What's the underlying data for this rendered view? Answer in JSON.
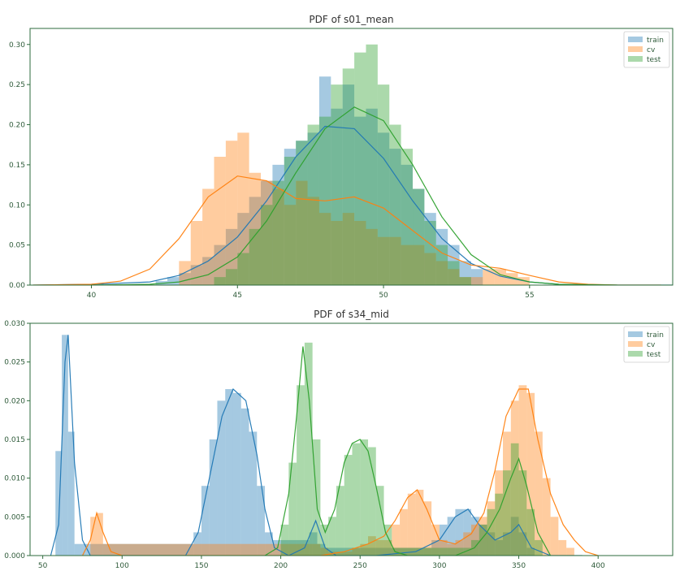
{
  "chart_data": [
    {
      "type": "histogram",
      "title": "PDF of s01_mean",
      "xlabel": "",
      "ylabel": "",
      "xlim": [
        37.9,
        59.9
      ],
      "ylim": [
        0,
        0.32
      ],
      "xticks": [
        40,
        45,
        50,
        55
      ],
      "yticks": [
        0.0,
        0.05,
        0.1,
        0.15,
        0.2,
        0.25,
        0.3
      ],
      "ytick_labels": [
        "0.00",
        "0.05",
        "0.10",
        "0.15",
        "0.20",
        "0.25",
        "0.30"
      ],
      "legend": {
        "position": "top-right",
        "entries": [
          "train",
          "cv",
          "test"
        ]
      },
      "series": [
        {
          "name": "train",
          "color": "#1f77b4",
          "bins": [
            42.2,
            42.6,
            43.0,
            43.4,
            43.8,
            44.2,
            44.6,
            45.0,
            45.4,
            45.8,
            46.2,
            46.6,
            47.0,
            47.4,
            47.8,
            48.2,
            48.6,
            49.0,
            49.4,
            49.8,
            50.2,
            50.6,
            51.0,
            51.4,
            51.8,
            52.2,
            52.6,
            53.0,
            53.4
          ],
          "heights": [
            0.005,
            0.01,
            0.015,
            0.025,
            0.035,
            0.05,
            0.07,
            0.09,
            0.11,
            0.13,
            0.15,
            0.17,
            0.18,
            0.19,
            0.26,
            0.22,
            0.25,
            0.21,
            0.22,
            0.19,
            0.17,
            0.15,
            0.12,
            0.09,
            0.07,
            0.05,
            0.03,
            0.02
          ],
          "kde": {
            "x": [
              38,
              40,
              42,
              43,
              44,
              45,
              46,
              47,
              48,
              49,
              50,
              51,
              52,
              53,
              54,
              55,
              56,
              58,
              60
            ],
            "y": [
              0,
              0.001,
              0.004,
              0.012,
              0.03,
              0.06,
              0.105,
              0.16,
              0.198,
              0.195,
              0.158,
              0.105,
              0.058,
              0.027,
              0.011,
              0.004,
              0.001,
              0,
              0
            ]
          }
        },
        {
          "name": "cv",
          "color": "#ff7f0e",
          "bins": [
            43.0,
            43.4,
            43.8,
            44.2,
            44.6,
            45.0,
            45.4,
            45.8,
            46.2,
            46.6,
            47.0,
            47.4,
            47.8,
            48.2,
            48.6,
            49.0,
            49.4,
            49.8,
            50.2,
            50.6,
            51.0,
            51.4,
            51.8,
            52.2,
            52.6,
            53.0,
            53.4,
            53.8,
            54.2,
            54.6,
            55.0
          ],
          "heights": [
            0.03,
            0.08,
            0.12,
            0.16,
            0.18,
            0.19,
            0.14,
            0.13,
            0.12,
            0.1,
            0.13,
            0.11,
            0.09,
            0.08,
            0.09,
            0.08,
            0.07,
            0.06,
            0.06,
            0.05,
            0.05,
            0.04,
            0.03,
            0.02,
            0.01,
            0.01,
            0.02,
            0.02,
            0.015,
            0.01
          ],
          "kde": {
            "x": [
              38,
              40,
              41,
              42,
              43,
              44,
              45,
              46,
              47,
              48,
              49,
              50,
              51,
              52,
              53,
              54,
              55,
              56,
              57,
              58,
              59.5
            ],
            "y": [
              0,
              0.001,
              0.005,
              0.02,
              0.058,
              0.11,
              0.136,
              0.13,
              0.108,
              0.105,
              0.11,
              0.096,
              0.068,
              0.04,
              0.025,
              0.021,
              0.012,
              0.004,
              0.001,
              0,
              0
            ]
          }
        },
        {
          "name": "test",
          "color": "#2ca02c",
          "bins": [
            44.2,
            44.6,
            45.0,
            45.4,
            45.8,
            46.2,
            46.6,
            47.0,
            47.4,
            47.8,
            48.2,
            48.6,
            49.0,
            49.4,
            49.8,
            50.2,
            50.6,
            51.0,
            51.4,
            51.8,
            52.2,
            52.6,
            53.0
          ],
          "heights": [
            0.01,
            0.02,
            0.04,
            0.07,
            0.1,
            0.13,
            0.16,
            0.18,
            0.2,
            0.21,
            0.25,
            0.27,
            0.29,
            0.3,
            0.25,
            0.2,
            0.17,
            0.12,
            0.08,
            0.05,
            0.03,
            0.01
          ],
          "kde": {
            "x": [
              40,
              42,
              43,
              44,
              45,
              46,
              47,
              48,
              49,
              50,
              51,
              52,
              53,
              54,
              55,
              56,
              58
            ],
            "y": [
              0,
              0.001,
              0.004,
              0.013,
              0.035,
              0.08,
              0.14,
              0.195,
              0.222,
              0.205,
              0.15,
              0.085,
              0.038,
              0.013,
              0.004,
              0.001,
              0
            ]
          }
        }
      ]
    },
    {
      "type": "histogram",
      "title": "PDF of s34_mid",
      "xlabel": "",
      "ylabel": "",
      "xlim": [
        42,
        447
      ],
      "ylim": [
        0,
        0.03
      ],
      "xticks": [
        50,
        100,
        150,
        200,
        250,
        300,
        350,
        400
      ],
      "yticks": [
        0.0,
        0.005,
        0.01,
        0.015,
        0.02,
        0.025,
        0.03
      ],
      "ytick_labels": [
        "0.000",
        "0.005",
        "0.010",
        "0.015",
        "0.020",
        "0.025",
        "0.030"
      ],
      "legend": {
        "position": "top-right",
        "entries": [
          "train",
          "cv",
          "test"
        ]
      },
      "series": [
        {
          "name": "train",
          "color": "#1f77b4",
          "bins": [
            58,
            62,
            66,
            70,
            145,
            150,
            155,
            160,
            165,
            170,
            175,
            180,
            185,
            190,
            195,
            218,
            223,
            228,
            295,
            300,
            305,
            310,
            315,
            320,
            325,
            330,
            335,
            340,
            345,
            350,
            355,
            360
          ],
          "heights": [
            0.0135,
            0.0285,
            0.016,
            0.0015,
            0.003,
            0.009,
            0.015,
            0.02,
            0.0215,
            0.021,
            0.019,
            0.016,
            0.009,
            0.003,
            0.002,
            0.003,
            0.0015,
            0.001,
            0.002,
            0.004,
            0.005,
            0.006,
            0.006,
            0.005,
            0.004,
            0.003,
            0.002,
            0.003,
            0.005,
            0.003,
            0.001
          ],
          "kde": {
            "x": [
              55,
              60,
              64,
              66,
              70,
              75,
              80,
              140,
              148,
              155,
              163,
              170,
              178,
              185,
              190,
              196,
              205,
              215,
              222,
              228,
              235,
              260,
              285,
              300,
              310,
              318,
              325,
              335,
              345,
              350,
              358,
              370,
              390
            ],
            "y": [
              0,
              0.004,
              0.025,
              0.0285,
              0.012,
              0.002,
              0,
              0,
              0.003,
              0.01,
              0.018,
              0.0215,
              0.02,
              0.013,
              0.006,
              0.001,
              0,
              0.001,
              0.0045,
              0.001,
              0,
              0,
              0.0005,
              0.002,
              0.005,
              0.006,
              0.004,
              0.002,
              0.003,
              0.004,
              0.001,
              0,
              0
            ]
          }
        },
        {
          "name": "cv",
          "color": "#ff7f0e",
          "bins": [
            80,
            84,
            88,
            225,
            230,
            235,
            240,
            245,
            250,
            255,
            260,
            265,
            270,
            275,
            280,
            285,
            290,
            295,
            300,
            305,
            310,
            315,
            320,
            325,
            330,
            335,
            340,
            345,
            350,
            355,
            360,
            365,
            370,
            375,
            380,
            385
          ],
          "heights": [
            0.005,
            0.0055,
            0.0015,
            0.001,
            0.0005,
            0.0005,
            0.0005,
            0.001,
            0.0015,
            0.0025,
            0.002,
            0.002,
            0.004,
            0.006,
            0.008,
            0.0085,
            0.007,
            0.004,
            0.002,
            0.0015,
            0.002,
            0.003,
            0.004,
            0.005,
            0.007,
            0.011,
            0.016,
            0.02,
            0.022,
            0.021,
            0.016,
            0.01,
            0.005,
            0.002,
            0.001
          ],
          "kde": {
            "x": [
              75,
              80,
              84,
              88,
              93,
              100,
              225,
              240,
              255,
              265,
              272,
              280,
              286,
              292,
              300,
              310,
              320,
              328,
              335,
              342,
              350,
              356,
              362,
              370,
              378,
              385,
              392,
              400
            ],
            "y": [
              0,
              0.002,
              0.0055,
              0.003,
              0.0005,
              0,
              0,
              0.0005,
              0.0015,
              0.0025,
              0.0045,
              0.0075,
              0.0085,
              0.006,
              0.002,
              0.0015,
              0.0028,
              0.0055,
              0.011,
              0.018,
              0.0215,
              0.0215,
              0.015,
              0.008,
              0.004,
              0.002,
              0.0005,
              0
            ]
          }
        },
        {
          "name": "test",
          "color": "#2ca02c",
          "bins": [
            200,
            205,
            210,
            215,
            220,
            225,
            230,
            235,
            240,
            245,
            250,
            255,
            260,
            265,
            270,
            275,
            320,
            325,
            330,
            335,
            340,
            345,
            350,
            355,
            360,
            365
          ],
          "heights": [
            0.004,
            0.012,
            0.022,
            0.0275,
            0.015,
            0.004,
            0.005,
            0.009,
            0.013,
            0.0145,
            0.015,
            0.014,
            0.009,
            0.004,
            0.001,
            0.001,
            0.002,
            0.004,
            0.006,
            0.008,
            0.011,
            0.0145,
            0.011,
            0.006,
            0.002
          ],
          "kde": {
            "x": [
              190,
              198,
              205,
              210,
              214,
              218,
              223,
              228,
              234,
              240,
              245,
              250,
              255,
              260,
              266,
              272,
              280,
              310,
              322,
              330,
              338,
              345,
              350,
              355,
              362,
              370
            ],
            "y": [
              0,
              0.001,
              0.008,
              0.018,
              0.027,
              0.02,
              0.006,
              0.003,
              0.006,
              0.012,
              0.0145,
              0.015,
              0.0135,
              0.009,
              0.003,
              0.0005,
              0,
              0,
              0.001,
              0.003,
              0.006,
              0.01,
              0.0125,
              0.009,
              0.003,
              0
            ]
          }
        }
      ]
    }
  ]
}
